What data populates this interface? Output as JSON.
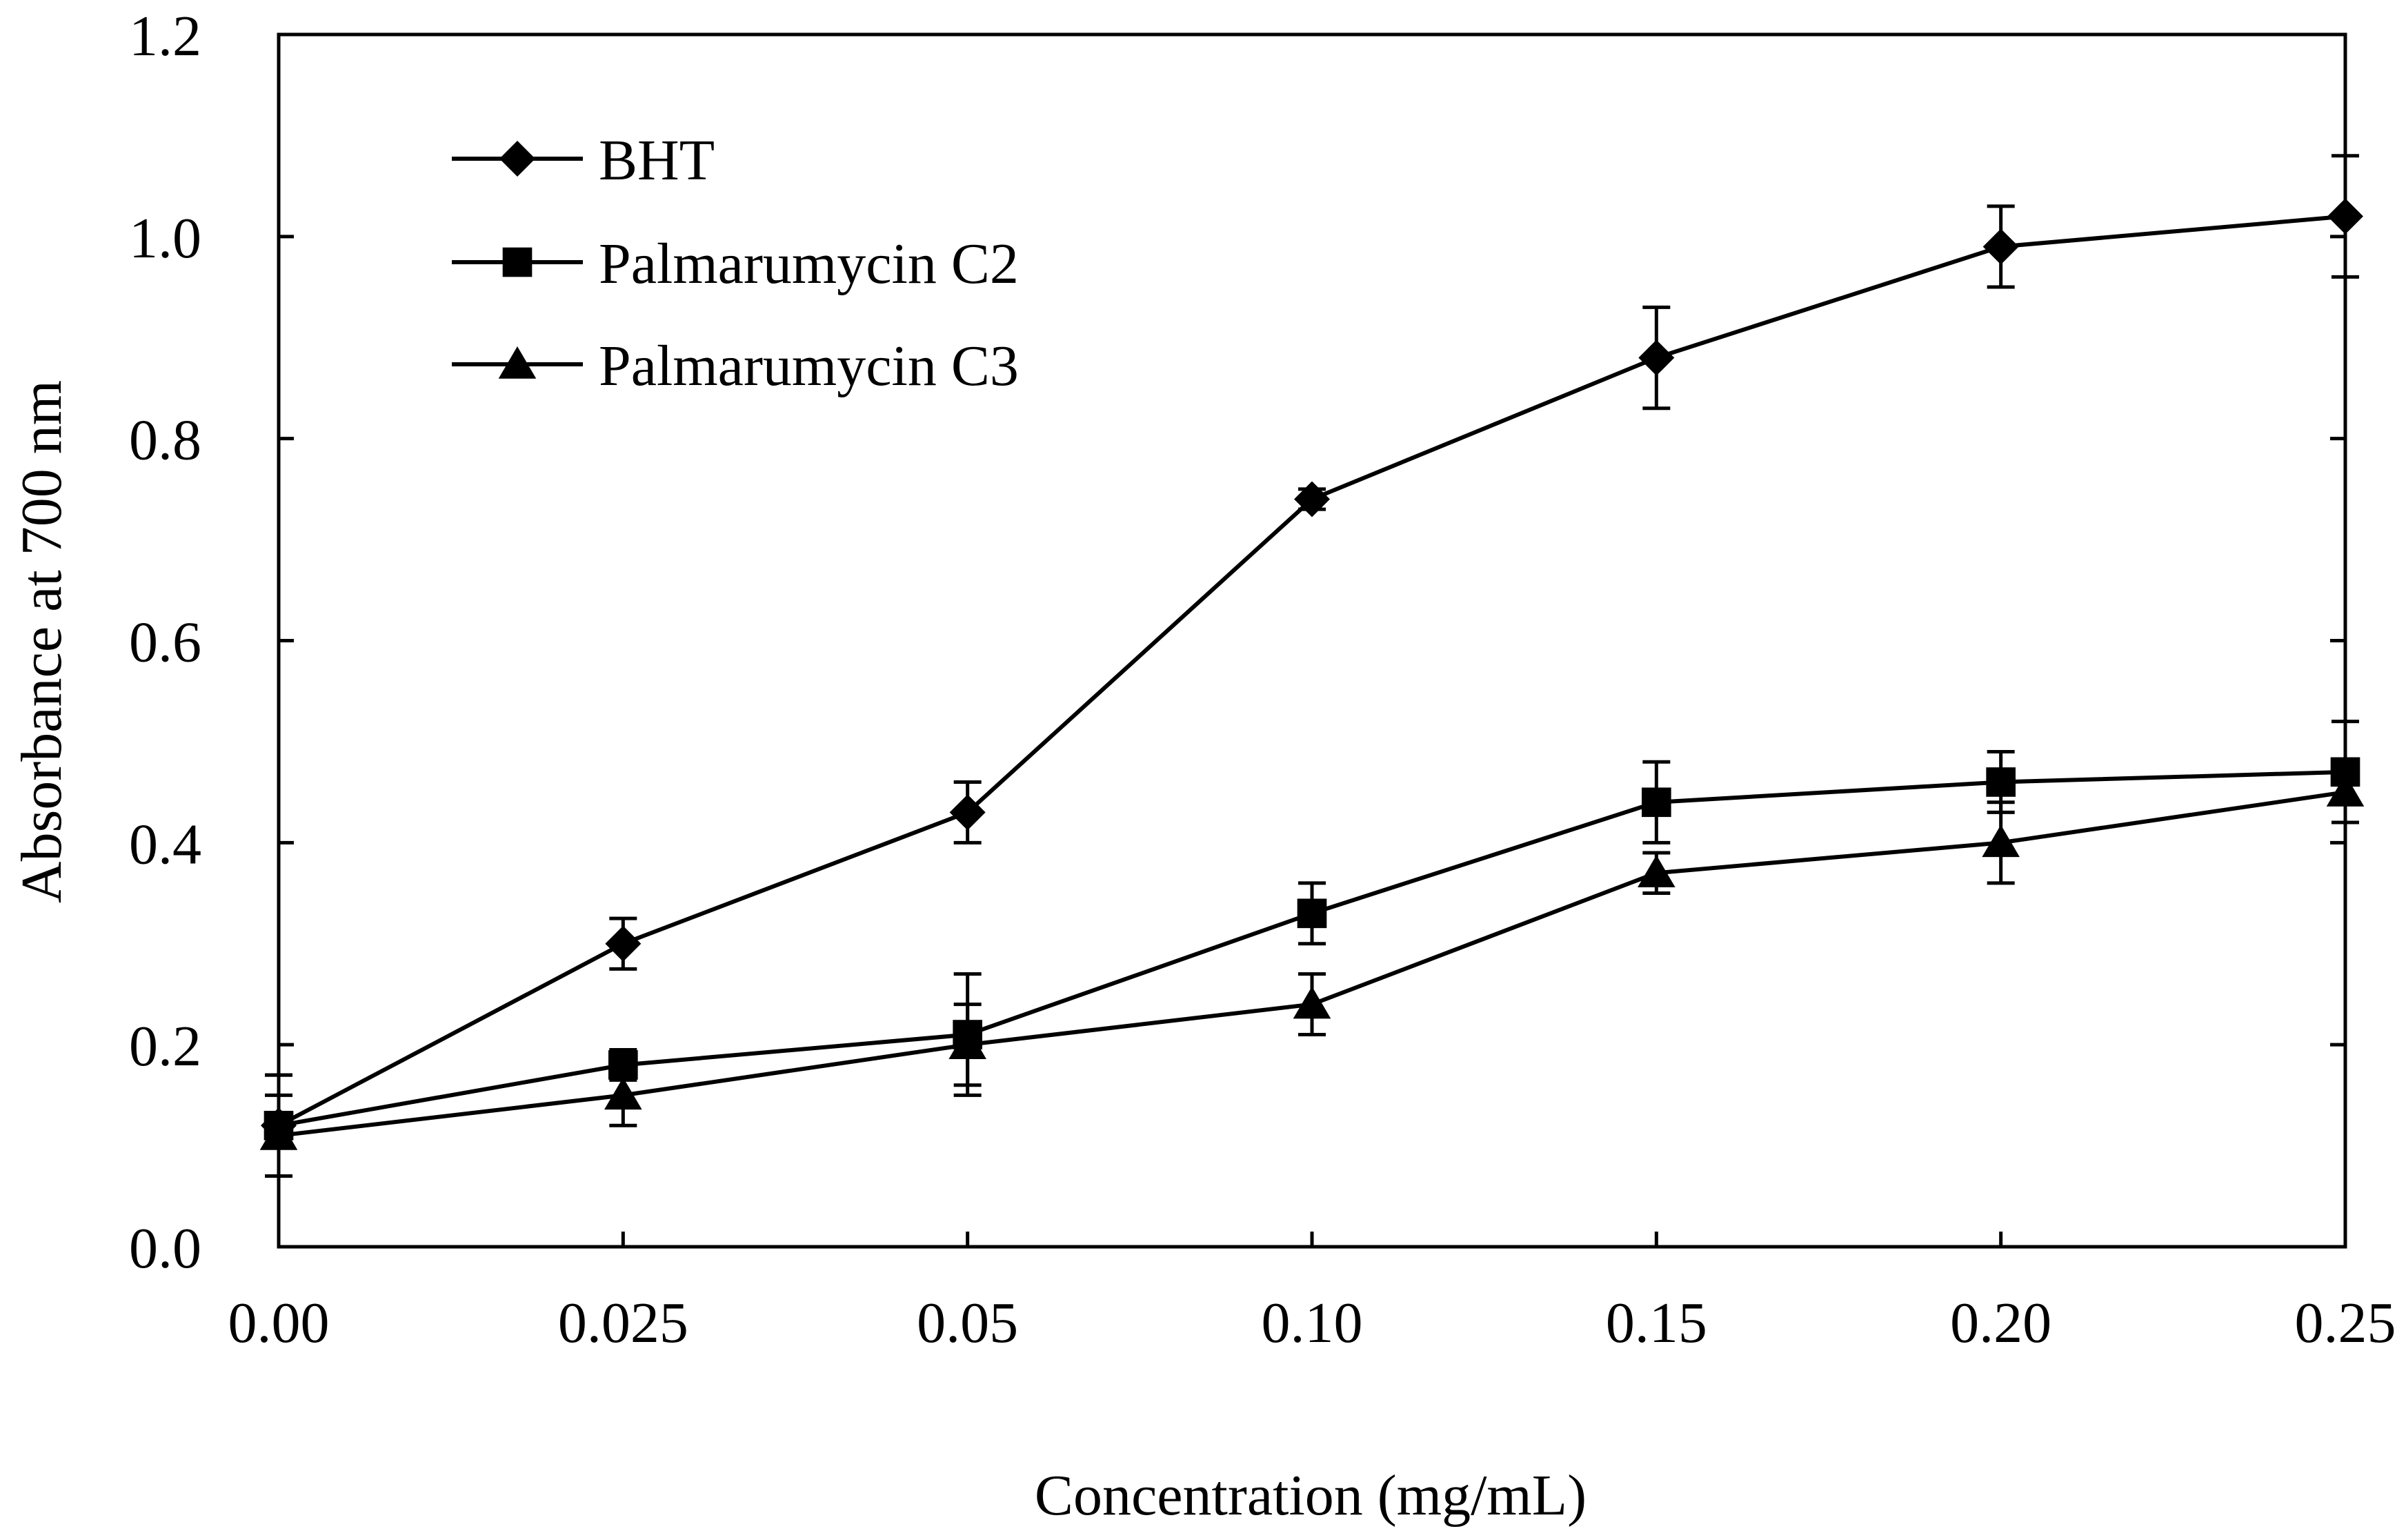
{
  "chart_data": {
    "type": "line",
    "title": "",
    "xlabel": "Concentration (mg/mL)",
    "ylabel": "Absorbance at 700 nm",
    "categories": [
      "0.00",
      "0.025",
      "0.05",
      "0.10",
      "0.15",
      "0.20",
      "0.25"
    ],
    "ylim": [
      0,
      1.2
    ],
    "y_ticks": [
      0,
      0.2,
      0.4,
      0.6,
      0.8,
      1.0,
      1.2
    ],
    "y_tick_labels": [
      "0.0",
      "0.2",
      "0.4",
      "0.6",
      "0.8",
      "1.0",
      "1.2"
    ],
    "grid": false,
    "legend_position": "top-left",
    "series": [
      {
        "name": "BHT",
        "marker": "diamond",
        "values": [
          0.12,
          0.3,
          0.43,
          0.74,
          0.88,
          0.99,
          1.02
        ],
        "errors": [
          0.05,
          0.025,
          0.03,
          0.01,
          0.05,
          0.04,
          0.06
        ]
      },
      {
        "name": "Palmarumycin C2",
        "marker": "square",
        "values": [
          0.12,
          0.18,
          0.21,
          0.33,
          0.44,
          0.46,
          0.47
        ],
        "errors": [
          0.05,
          0.015,
          0.06,
          0.03,
          0.04,
          0.03,
          0.05
        ]
      },
      {
        "name": "Palmarumycin C3",
        "marker": "triangle",
        "values": [
          0.11,
          0.15,
          0.2,
          0.24,
          0.37,
          0.4,
          0.45
        ],
        "errors": [
          0.04,
          0.03,
          0.04,
          0.03,
          0.02,
          0.04,
          0.03
        ]
      }
    ],
    "colors": {
      "line": "#000000",
      "background": "#ffffff"
    }
  }
}
